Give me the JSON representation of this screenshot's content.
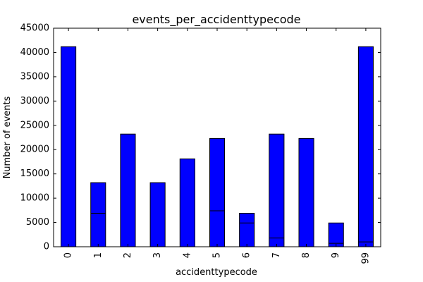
{
  "chart_data": {
    "type": "bar",
    "title": "events_per_accidenttypecode",
    "xlabel": "accidenttypecode",
    "ylabel": "Number of events",
    "categories": [
      "0",
      "1",
      "2",
      "3",
      "4",
      "5",
      "6",
      "7",
      "8",
      "9",
      "99"
    ],
    "values": [
      41200,
      13200,
      23200,
      13200,
      18100,
      22300,
      6900,
      23200,
      22300,
      4900,
      41200
    ],
    "segment_boundaries": [
      null,
      6900,
      null,
      null,
      null,
      7400,
      4900,
      1800,
      null,
      700,
      1000
    ],
    "ylim": [
      0,
      45000
    ],
    "yticks": [
      "0",
      "5000",
      "10000",
      "15000",
      "20000",
      "25000",
      "30000",
      "35000",
      "40000",
      "45000"
    ],
    "grid": false,
    "bar_color": "#0000ff",
    "edge_color": "#000000"
  }
}
